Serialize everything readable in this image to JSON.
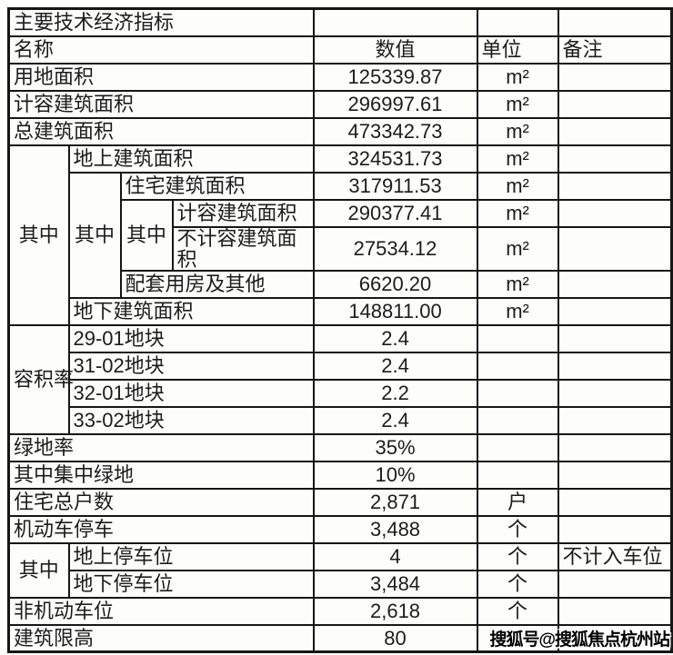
{
  "colors": {
    "background": "#fdfdfc",
    "border": "#161616",
    "text": "#1c1c1c",
    "watermark_text": "#000000",
    "watermark_outline": "#ffffff"
  },
  "watermark": {
    "text": "搜狐号@搜狐焦点杭州站"
  },
  "table": {
    "rows": [
      {
        "cells": [
          {
            "text": "主要技术经济指标",
            "kind": "label",
            "colspan": 4
          },
          {
            "text": "",
            "kind": "value"
          },
          {
            "text": "",
            "kind": "unit"
          },
          {
            "text": "",
            "kind": "remark"
          }
        ]
      },
      {
        "cells": [
          {
            "text": "名称",
            "kind": "label",
            "colspan": 4
          },
          {
            "text": "数值",
            "kind": "value"
          },
          {
            "text": "单位",
            "kind": "label"
          },
          {
            "text": "备注",
            "kind": "label"
          }
        ]
      },
      {
        "cells": [
          {
            "text": "用地面积",
            "kind": "label",
            "colspan": 4
          },
          {
            "text": "125339.87",
            "kind": "value"
          },
          {
            "text": "m²",
            "kind": "unit"
          },
          {
            "text": "",
            "kind": "remark"
          }
        ]
      },
      {
        "cells": [
          {
            "text": "计容建筑面积",
            "kind": "label",
            "colspan": 4
          },
          {
            "text": "296997.61",
            "kind": "value"
          },
          {
            "text": "m²",
            "kind": "unit"
          },
          {
            "text": "",
            "kind": "remark"
          }
        ]
      },
      {
        "cells": [
          {
            "text": "总建筑面积",
            "kind": "label",
            "colspan": 4
          },
          {
            "text": "473342.73",
            "kind": "value"
          },
          {
            "text": "m²",
            "kind": "unit"
          },
          {
            "text": "",
            "kind": "remark"
          }
        ]
      },
      {
        "cells": [
          {
            "text": "其中",
            "kind": "group",
            "rowspan": 6
          },
          {
            "text": "地上建筑面积",
            "kind": "label",
            "colspan": 3
          },
          {
            "text": "324531.73",
            "kind": "value"
          },
          {
            "text": "m²",
            "kind": "unit"
          },
          {
            "text": "",
            "kind": "remark"
          }
        ]
      },
      {
        "cells": [
          {
            "text": "其中",
            "kind": "group",
            "rowspan": 4
          },
          {
            "text": "住宅建筑面积",
            "kind": "label",
            "colspan": 2
          },
          {
            "text": "317911.53",
            "kind": "value"
          },
          {
            "text": "m²",
            "kind": "unit"
          },
          {
            "text": "",
            "kind": "remark"
          }
        ]
      },
      {
        "cells": [
          {
            "text": "其中",
            "kind": "group",
            "rowspan": 2
          },
          {
            "text": "计容建筑面积",
            "kind": "label"
          },
          {
            "text": "290377.41",
            "kind": "value"
          },
          {
            "text": "m²",
            "kind": "unit"
          },
          {
            "text": "",
            "kind": "remark"
          }
        ]
      },
      {
        "cells": [
          {
            "text": "不计容建筑面积",
            "kind": "label"
          },
          {
            "text": "27534.12",
            "kind": "value"
          },
          {
            "text": "m²",
            "kind": "unit"
          },
          {
            "text": "",
            "kind": "remark"
          }
        ]
      },
      {
        "cells": [
          {
            "text": "配套用房及其他",
            "kind": "label",
            "colspan": 2
          },
          {
            "text": "6620.20",
            "kind": "value"
          },
          {
            "text": "m²",
            "kind": "unit"
          },
          {
            "text": "",
            "kind": "remark"
          }
        ]
      },
      {
        "cells": [
          {
            "text": "地下建筑面积",
            "kind": "label",
            "colspan": 3
          },
          {
            "text": "148811.00",
            "kind": "value"
          },
          {
            "text": "m²",
            "kind": "unit"
          },
          {
            "text": "",
            "kind": "remark"
          }
        ]
      },
      {
        "cells": [
          {
            "text": "容积率",
            "kind": "group",
            "rowspan": 4
          },
          {
            "text": "29-01地块",
            "kind": "label",
            "colspan": 3
          },
          {
            "text": "2.4",
            "kind": "value"
          },
          {
            "text": "",
            "kind": "unit"
          },
          {
            "text": "",
            "kind": "remark"
          }
        ]
      },
      {
        "cells": [
          {
            "text": "31-02地块",
            "kind": "label",
            "colspan": 3
          },
          {
            "text": "2.4",
            "kind": "value"
          },
          {
            "text": "",
            "kind": "unit"
          },
          {
            "text": "",
            "kind": "remark"
          }
        ]
      },
      {
        "cells": [
          {
            "text": "32-01地块",
            "kind": "label",
            "colspan": 3
          },
          {
            "text": "2.2",
            "kind": "value"
          },
          {
            "text": "",
            "kind": "unit"
          },
          {
            "text": "",
            "kind": "remark"
          }
        ]
      },
      {
        "cells": [
          {
            "text": "33-02地块",
            "kind": "label",
            "colspan": 3
          },
          {
            "text": "2.4",
            "kind": "value"
          },
          {
            "text": "",
            "kind": "unit"
          },
          {
            "text": "",
            "kind": "remark"
          }
        ]
      },
      {
        "cells": [
          {
            "text": "绿地率",
            "kind": "label",
            "colspan": 4
          },
          {
            "text": "35%",
            "kind": "value"
          },
          {
            "text": "",
            "kind": "unit"
          },
          {
            "text": "",
            "kind": "remark"
          }
        ]
      },
      {
        "cells": [
          {
            "text": "其中集中绿地",
            "kind": "label",
            "colspan": 4
          },
          {
            "text": "10%",
            "kind": "value"
          },
          {
            "text": "",
            "kind": "unit"
          },
          {
            "text": "",
            "kind": "remark"
          }
        ]
      },
      {
        "cells": [
          {
            "text": "住宅总户数",
            "kind": "label",
            "colspan": 4
          },
          {
            "text": "2,871",
            "kind": "value"
          },
          {
            "text": "户",
            "kind": "unit"
          },
          {
            "text": "",
            "kind": "remark"
          }
        ]
      },
      {
        "cells": [
          {
            "text": "机动车停车",
            "kind": "label",
            "colspan": 4
          },
          {
            "text": "3,488",
            "kind": "value"
          },
          {
            "text": "个",
            "kind": "unit"
          },
          {
            "text": "",
            "kind": "remark"
          }
        ]
      },
      {
        "cells": [
          {
            "text": "其中",
            "kind": "group",
            "rowspan": 2
          },
          {
            "text": "地上停车位",
            "kind": "label",
            "colspan": 3
          },
          {
            "text": "4",
            "kind": "value"
          },
          {
            "text": "个",
            "kind": "unit"
          },
          {
            "text": "不计入车位",
            "kind": "remark"
          }
        ]
      },
      {
        "cells": [
          {
            "text": "地下停车位",
            "kind": "label",
            "colspan": 3
          },
          {
            "text": "3,484",
            "kind": "value"
          },
          {
            "text": "个",
            "kind": "unit"
          },
          {
            "text": "",
            "kind": "remark"
          }
        ]
      },
      {
        "cells": [
          {
            "text": "非机动车位",
            "kind": "label",
            "colspan": 4
          },
          {
            "text": "2,618",
            "kind": "value"
          },
          {
            "text": "个",
            "kind": "unit"
          },
          {
            "text": "",
            "kind": "remark"
          }
        ]
      },
      {
        "cells": [
          {
            "text": "建筑限高",
            "kind": "label",
            "colspan": 4
          },
          {
            "text": "80",
            "kind": "value"
          },
          {
            "text": "",
            "kind": "unit"
          },
          {
            "text": "",
            "kind": "remark"
          }
        ]
      }
    ]
  }
}
